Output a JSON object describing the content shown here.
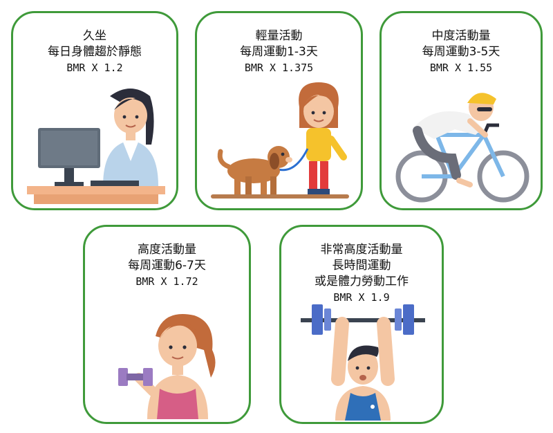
{
  "cards": [
    {
      "title": "久坐",
      "desc": "每日身體趨於靜態",
      "bmr": "BMR X 1.2",
      "icon": "office-worker-icon"
    },
    {
      "title": "輕量活動",
      "desc": "每周運動1-3天",
      "bmr": "BMR X 1.375",
      "icon": "dog-walker-icon"
    },
    {
      "title": "中度活動量",
      "desc": "每周運動3-5天",
      "bmr": "BMR X 1.55",
      "icon": "cyclist-icon"
    },
    {
      "title": "高度活動量",
      "desc": "每周運動6-7天",
      "bmr": "BMR X 1.72",
      "icon": "dumbbell-woman-icon"
    },
    {
      "title": "非常高度活動量",
      "desc": "長時間運動",
      "desc2": "或是體力勞動工作",
      "bmr": "BMR X 1.9",
      "icon": "weightlifter-icon"
    }
  ],
  "colors": {
    "border": "#3f9a3a"
  }
}
